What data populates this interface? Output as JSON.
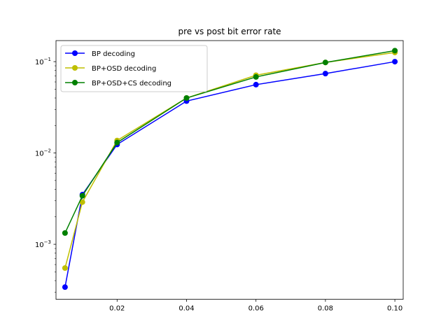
{
  "chart_data": {
    "type": "line",
    "title": "pre vs post bit error rate",
    "xlabel": "",
    "ylabel": "",
    "y_scale": "log",
    "xlim": [
      0.0024,
      0.1024
    ],
    "ylim": [
      0.00025,
      0.17
    ],
    "x_ticks": [
      0.02,
      0.04,
      0.06,
      0.08,
      0.1
    ],
    "x_tick_labels": [
      "0.02",
      "0.04",
      "0.06",
      "0.08",
      "0.10"
    ],
    "y_ticks": [
      0.001,
      0.01,
      0.1
    ],
    "y_tick_labels": [
      {
        "base": "10",
        "exp": "−3"
      },
      {
        "base": "10",
        "exp": "−2"
      },
      {
        "base": "10",
        "exp": "−1"
      }
    ],
    "grid": false,
    "legend_position": "top-left",
    "x": [
      0.005,
      0.01,
      0.02,
      0.04,
      0.06,
      0.08,
      0.1
    ],
    "series": [
      {
        "name": "BP decoding",
        "color": "#0000ff",
        "marker": "circle",
        "values": [
          0.00034,
          0.0035,
          0.0124,
          0.037,
          0.056,
          0.074,
          0.1
        ]
      },
      {
        "name": "BP+OSD decoding",
        "color": "#bfbf00",
        "marker": "circle",
        "values": [
          0.00055,
          0.0029,
          0.0137,
          0.04,
          0.071,
          0.098,
          0.126
        ]
      },
      {
        "name": "BP+OSD+CS decoding",
        "color": "#008000",
        "marker": "circle",
        "values": [
          0.00133,
          0.0034,
          0.013,
          0.04,
          0.068,
          0.098,
          0.132
        ]
      }
    ]
  }
}
